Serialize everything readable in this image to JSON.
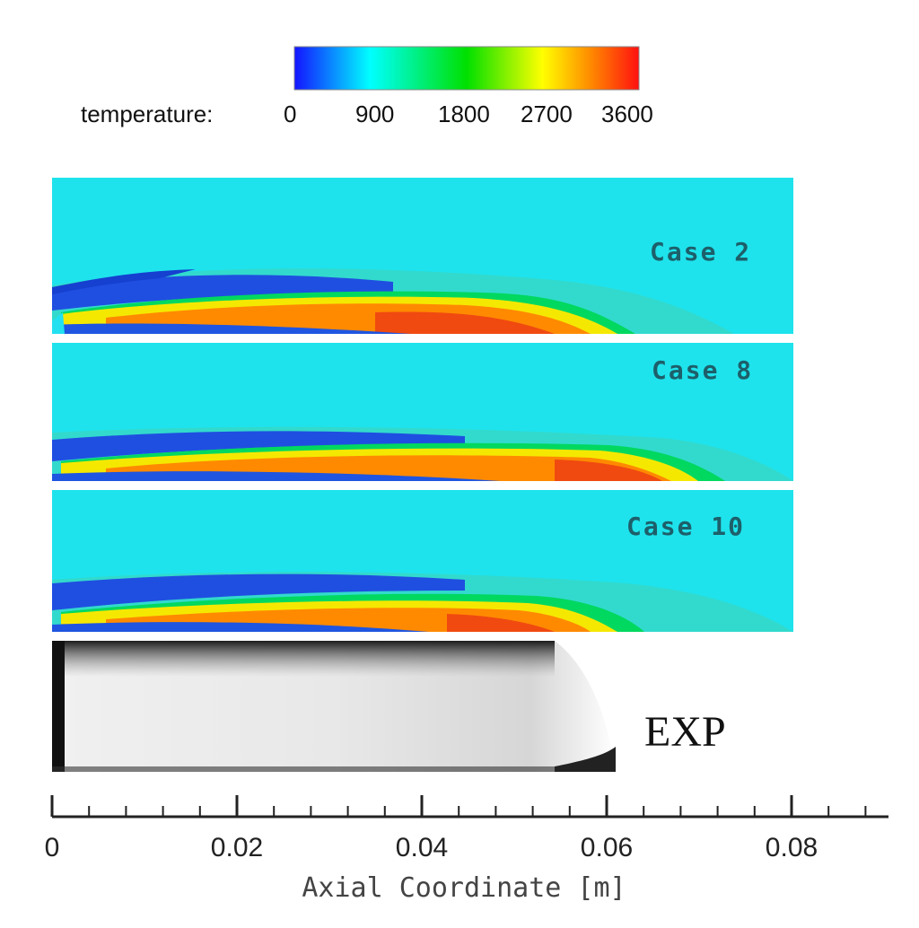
{
  "colorbar": {
    "title": "temperature:",
    "ticks": [
      "0",
      "900",
      "1800",
      "2700",
      "3600"
    ],
    "colors": [
      "#1a1aff",
      "#00ffee",
      "#00e000",
      "#ffff00",
      "#ff7a00",
      "#ff0000"
    ]
  },
  "cases": [
    {
      "label": "Case 2"
    },
    {
      "label": "Case 8"
    },
    {
      "label": "Case 10"
    }
  ],
  "exp": {
    "label": "EXP"
  },
  "axis": {
    "title": "Axial Coordinate [m]",
    "ticks": [
      "0",
      "0.02",
      "0.04",
      "0.06",
      "0.08"
    ]
  }
}
